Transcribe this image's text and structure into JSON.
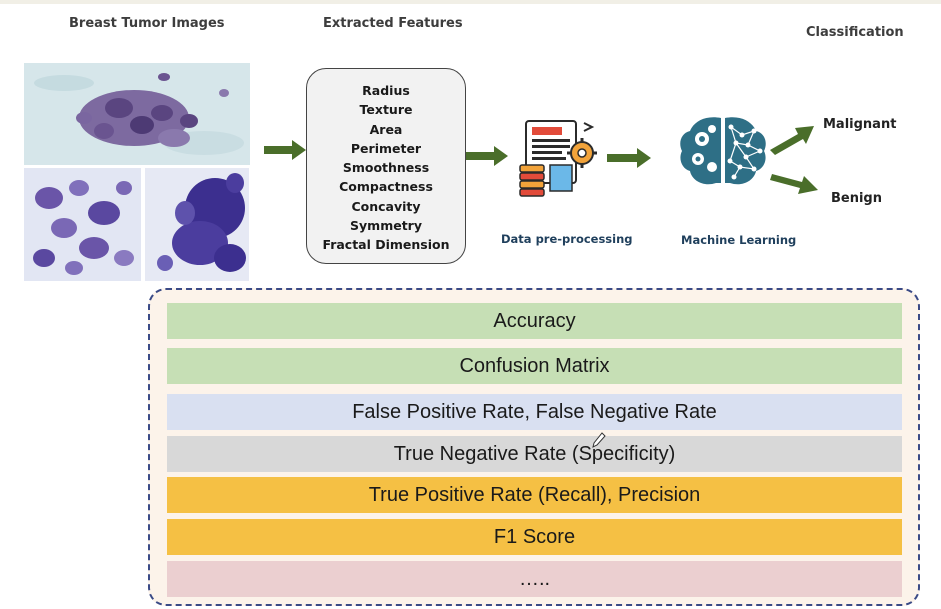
{
  "headers": {
    "images": "Breast Tumor Images",
    "features": "Extracted Features",
    "classification": "Classification"
  },
  "features": [
    "Radius",
    "Texture",
    "Area",
    "Perimeter",
    "Smoothness",
    "Compactness",
    "Concavity",
    "Symmetry",
    "Fractal Dimension"
  ],
  "steps": {
    "preprocessing": "Data pre-processing",
    "ml": "Machine Learning"
  },
  "outputs": {
    "malignant": "Malignant",
    "benign": "Benign"
  },
  "metrics": [
    {
      "label": "Accuracy",
      "color": "#c6dfb5"
    },
    {
      "label": "Confusion Matrix",
      "color": "#c6dfb5"
    },
    {
      "label": "False Positive Rate, False Negative Rate",
      "color": "#d9e0f1"
    },
    {
      "label": "True Negative Rate (Specificity)",
      "color": "#d8d8d8"
    },
    {
      "label": "True Positive Rate (Recall), Precision",
      "color": "#f5c044"
    },
    {
      "label": "F1 Score",
      "color": "#f5c044"
    },
    {
      "label": "…..",
      "color": "#ebcfd0"
    }
  ],
  "colors": {
    "arrow": "#4a6e2a",
    "panel_border": "#3a4a86",
    "panel_bg": "#fcf3ea"
  },
  "icons": {
    "preprocessing": "document-gear-icon",
    "ml": "brain-gear-icon"
  }
}
